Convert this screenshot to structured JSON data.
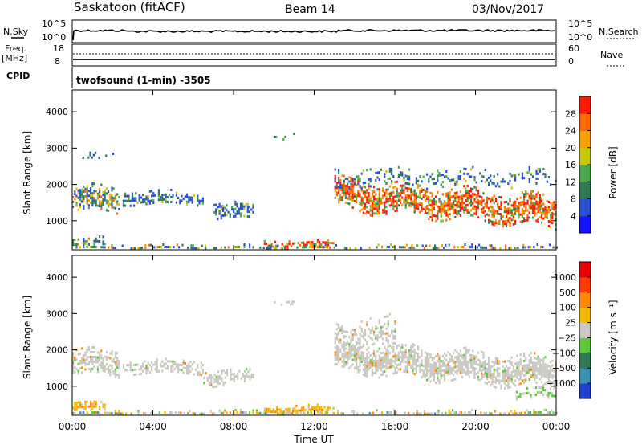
{
  "header": {
    "title": "Saskatoon (fitACF)",
    "beam": "Beam 14",
    "date": "03/Nov/2017"
  },
  "strip": {
    "nsky_label": "N.Sky",
    "nsearch_label": "N.Search",
    "left_ticks": [
      "10^5",
      "10^0"
    ],
    "right_ticks": [
      "10^5",
      "10^0"
    ],
    "freq_label": "Freq.",
    "freq_unit": "[MHz]",
    "freq_ticks": [
      "18",
      "8"
    ],
    "nave_label": "Nave",
    "nave_ticks": [
      "60",
      "0"
    ],
    "cpid_label": "CPID",
    "cpid_value": "twofsound (1-min) -3505"
  },
  "chart_data": [
    {
      "type": "heatmap",
      "name": "power",
      "ylabel": "Slant Range [km]",
      "y_ticks": [
        "4000",
        "3000",
        "2000",
        "1000"
      ],
      "ylim": [
        200,
        4600
      ],
      "colorbar_label": "Power [dB]",
      "colorbar_ticks": [
        "28",
        "24",
        "20",
        "16",
        "12",
        "8",
        "4"
      ],
      "colors": [
        "#1414ff",
        "#2a4fd0",
        "#2e7a55",
        "#4aa84a",
        "#c8c800",
        "#f5a000",
        "#ff6a00",
        "#ff1a00"
      ]
    },
    {
      "type": "heatmap",
      "name": "velocity",
      "ylabel": "Slant Range [km]",
      "y_ticks": [
        "4000",
        "3000",
        "2000",
        "1000"
      ],
      "ylim": [
        200,
        4600
      ],
      "colorbar_label": "Velocity [m s⁻¹]",
      "colorbar_ticks": [
        "1000",
        "500",
        "100",
        "25",
        "−25",
        "−100",
        "−500",
        "−1000"
      ],
      "colors": [
        "#1f3fd6",
        "#3a8fb5",
        "#2e7a55",
        "#5cc83c",
        "#c8c8c0",
        "#f5b800",
        "#ff8a00",
        "#ff3a00",
        "#e80000"
      ]
    }
  ],
  "x_axis": {
    "ticks": [
      "00:00",
      "04:00",
      "08:00",
      "12:00",
      "16:00",
      "20:00",
      "00:00"
    ],
    "label": "Time UT"
  }
}
